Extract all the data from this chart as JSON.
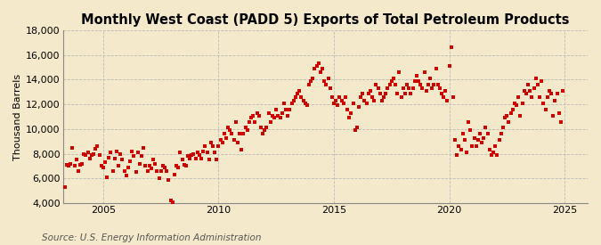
{
  "title": "Monthly West Coast (PADD 5) Exports of Total Petroleum Products",
  "ylabel": "Thousand Barrels",
  "source": "Source: U.S. Energy Information Administration",
  "ylim": [
    4000,
    18000
  ],
  "yticks": [
    4000,
    6000,
    8000,
    10000,
    12000,
    14000,
    16000,
    18000
  ],
  "xlim_start": 2003.25,
  "xlim_end": 2026.0,
  "xticks": [
    2005,
    2010,
    2015,
    2020,
    2025
  ],
  "dot_color": "#cc0000",
  "background_color": "#f5e9cc",
  "plot_bg_color": "#f5e9cc",
  "grid_color": "#bbbbbb",
  "title_fontsize": 10.5,
  "label_fontsize": 8,
  "tick_fontsize": 8,
  "source_fontsize": 7.5,
  "dot_size": 12,
  "data_x": [
    2003.33,
    2003.42,
    2003.5,
    2003.58,
    2003.67,
    2003.75,
    2003.83,
    2003.92,
    2004.0,
    2004.08,
    2004.17,
    2004.25,
    2004.33,
    2004.42,
    2004.5,
    2004.58,
    2004.67,
    2004.75,
    2004.83,
    2004.92,
    2005.0,
    2005.08,
    2005.17,
    2005.25,
    2005.33,
    2005.42,
    2005.5,
    2005.58,
    2005.67,
    2005.75,
    2005.83,
    2005.92,
    2006.0,
    2006.08,
    2006.17,
    2006.25,
    2006.33,
    2006.42,
    2006.5,
    2006.58,
    2006.67,
    2006.75,
    2006.83,
    2006.92,
    2007.0,
    2007.08,
    2007.17,
    2007.25,
    2007.33,
    2007.42,
    2007.5,
    2007.58,
    2007.67,
    2007.75,
    2007.83,
    2007.92,
    2008.0,
    2008.08,
    2008.17,
    2008.25,
    2008.33,
    2008.42,
    2008.5,
    2008.58,
    2008.67,
    2008.75,
    2008.83,
    2008.92,
    2009.0,
    2009.08,
    2009.17,
    2009.25,
    2009.33,
    2009.42,
    2009.5,
    2009.58,
    2009.67,
    2009.75,
    2009.83,
    2009.92,
    2010.0,
    2010.08,
    2010.17,
    2010.25,
    2010.33,
    2010.42,
    2010.5,
    2010.58,
    2010.67,
    2010.75,
    2010.83,
    2010.92,
    2011.0,
    2011.08,
    2011.17,
    2011.25,
    2011.33,
    2011.42,
    2011.5,
    2011.58,
    2011.67,
    2011.75,
    2011.83,
    2011.92,
    2012.0,
    2012.08,
    2012.17,
    2012.25,
    2012.33,
    2012.42,
    2012.5,
    2012.58,
    2012.67,
    2012.75,
    2012.83,
    2012.92,
    2013.0,
    2013.08,
    2013.17,
    2013.25,
    2013.33,
    2013.42,
    2013.5,
    2013.58,
    2013.67,
    2013.75,
    2013.83,
    2013.92,
    2014.0,
    2014.08,
    2014.17,
    2014.25,
    2014.33,
    2014.42,
    2014.5,
    2014.58,
    2014.67,
    2014.75,
    2014.83,
    2014.92,
    2015.0,
    2015.08,
    2015.17,
    2015.25,
    2015.33,
    2015.42,
    2015.5,
    2015.58,
    2015.67,
    2015.75,
    2015.83,
    2015.92,
    2016.0,
    2016.08,
    2016.17,
    2016.25,
    2016.33,
    2016.42,
    2016.5,
    2016.58,
    2016.67,
    2016.75,
    2016.83,
    2016.92,
    2017.0,
    2017.08,
    2017.17,
    2017.25,
    2017.33,
    2017.42,
    2017.5,
    2017.58,
    2017.67,
    2017.75,
    2017.83,
    2017.92,
    2018.0,
    2018.08,
    2018.17,
    2018.25,
    2018.33,
    2018.42,
    2018.5,
    2018.58,
    2018.67,
    2018.75,
    2018.83,
    2018.92,
    2019.0,
    2019.08,
    2019.17,
    2019.25,
    2019.33,
    2019.42,
    2019.5,
    2019.58,
    2019.67,
    2019.75,
    2019.83,
    2019.92,
    2020.0,
    2020.08,
    2020.17,
    2020.25,
    2020.33,
    2020.42,
    2020.5,
    2020.58,
    2020.67,
    2020.75,
    2020.83,
    2020.92,
    2021.0,
    2021.08,
    2021.17,
    2021.25,
    2021.33,
    2021.42,
    2021.5,
    2021.58,
    2021.67,
    2021.75,
    2021.83,
    2021.92,
    2022.0,
    2022.08,
    2022.17,
    2022.25,
    2022.33,
    2022.42,
    2022.5,
    2022.58,
    2022.67,
    2022.75,
    2022.83,
    2022.92,
    2023.0,
    2023.08,
    2023.17,
    2023.25,
    2023.33,
    2023.42,
    2023.5,
    2023.58,
    2023.67,
    2023.75,
    2023.83,
    2023.92,
    2024.0,
    2024.08,
    2024.17,
    2024.25,
    2024.33,
    2024.42,
    2024.5,
    2024.58,
    2024.67,
    2024.75,
    2024.83,
    2024.92
  ],
  "data_y": [
    5300,
    7100,
    7000,
    7200,
    8500,
    7000,
    7500,
    6600,
    7100,
    7200,
    8000,
    7900,
    8100,
    7600,
    7900,
    8000,
    8400,
    8600,
    7900,
    7000,
    6900,
    7300,
    6100,
    7700,
    8100,
    6600,
    7600,
    8200,
    7000,
    8000,
    7500,
    6600,
    6200,
    6900,
    7400,
    8200,
    7800,
    6500,
    8100,
    7200,
    7800,
    8500,
    7000,
    6600,
    7000,
    6800,
    7500,
    7200,
    6600,
    6000,
    6600,
    7000,
    6900,
    6600,
    5900,
    4200,
    4100,
    6300,
    7000,
    6900,
    8100,
    7500,
    7100,
    7000,
    7800,
    7600,
    7900,
    8000,
    7600,
    8100,
    7900,
    7600,
    8200,
    8600,
    8100,
    7500,
    8900,
    8600,
    8100,
    7500,
    8600,
    9100,
    8900,
    9600,
    9300,
    10100,
    9900,
    9600,
    9100,
    10600,
    8900,
    9600,
    8300,
    9600,
    10100,
    9900,
    10600,
    10900,
    11100,
    10600,
    11300,
    11100,
    10100,
    9600,
    9900,
    10100,
    11300,
    10600,
    11100,
    10900,
    11600,
    11100,
    10900,
    11300,
    12100,
    11600,
    11100,
    11600,
    12100,
    12300,
    12600,
    12900,
    13100,
    12600,
    12300,
    12100,
    11900,
    13600,
    13900,
    14100,
    14900,
    15100,
    15300,
    14600,
    14900,
    13900,
    13600,
    14100,
    13300,
    12600,
    12100,
    12300,
    11900,
    12600,
    12300,
    12100,
    12600,
    11600,
    10900,
    11300,
    12100,
    9900,
    10100,
    11800,
    12600,
    12900,
    12300,
    12100,
    12900,
    13100,
    12600,
    12300,
    13600,
    13300,
    12900,
    12300,
    12600,
    12900,
    13300,
    13600,
    13900,
    14100,
    13600,
    12900,
    14600,
    12600,
    13300,
    12900,
    13600,
    13300,
    12900,
    13300,
    13900,
    14300,
    13900,
    13600,
    13300,
    14600,
    13100,
    13600,
    14100,
    13300,
    13600,
    14900,
    13600,
    13300,
    12900,
    12600,
    13100,
    12300,
    15100,
    16600,
    12600,
    9100,
    7900,
    8600,
    8300,
    9600,
    9100,
    8100,
    10600,
    9900,
    8600,
    9300,
    8600,
    9100,
    9600,
    8900,
    9300,
    10100,
    9600,
    8300,
    7900,
    8100,
    8600,
    7900,
    9100,
    9600,
    10100,
    10900,
    11100,
    10600,
    11300,
    11600,
    12100,
    11900,
    12600,
    11100,
    12100,
    13100,
    12900,
    13600,
    13100,
    12600,
    13300,
    14100,
    13600,
    12600,
    13900,
    12100,
    11600,
    12600,
    13100,
    12900,
    11100,
    12300,
    12900,
    11300,
    10600,
    13100
  ]
}
